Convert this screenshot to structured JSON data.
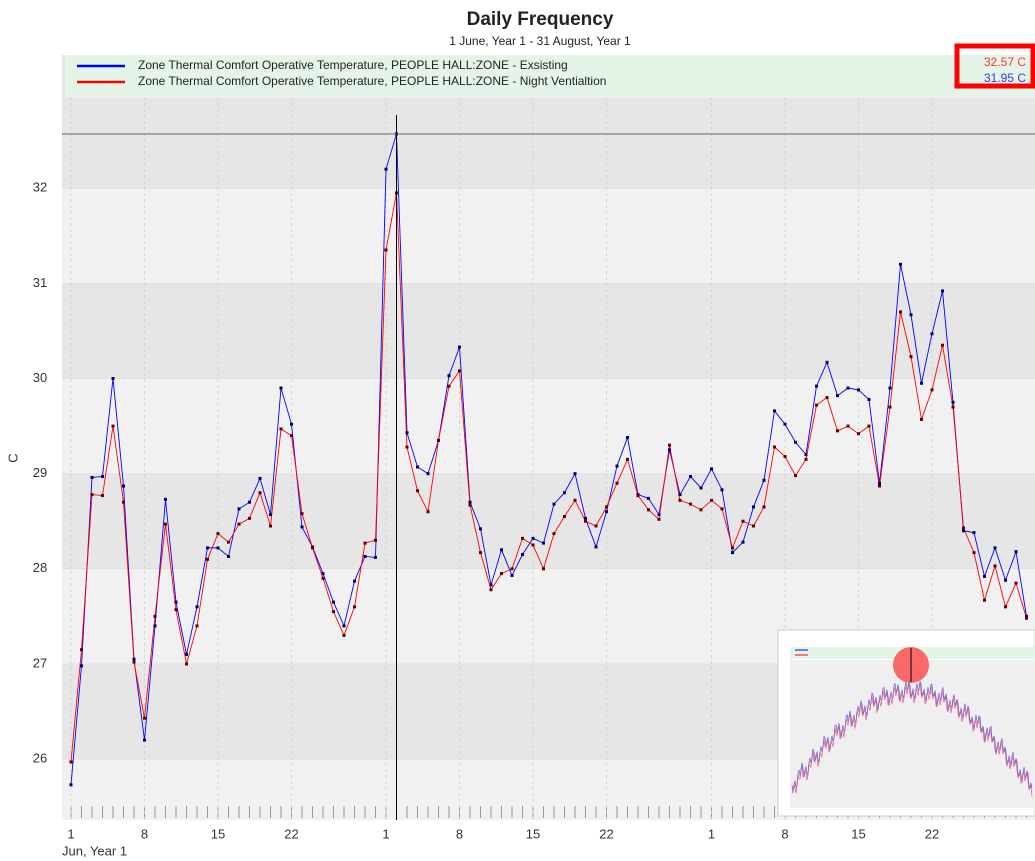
{
  "chart_data": {
    "type": "line",
    "title": "Daily Frequency",
    "subtitle": "1 June, Year 1 - 31 August, Year 1",
    "y_label": "C",
    "x_sub_label": "Jun, Year 1",
    "categories": [
      "1",
      null,
      null,
      null,
      null,
      null,
      null,
      "8",
      null,
      null,
      null,
      null,
      null,
      null,
      "15",
      null,
      null,
      null,
      null,
      null,
      null,
      "22",
      null,
      null,
      null,
      null,
      null,
      null,
      null,
      null,
      "1",
      null,
      null,
      null,
      null,
      null,
      null,
      "8",
      null,
      null,
      null,
      null,
      null,
      null,
      "15",
      null,
      null,
      null,
      null,
      null,
      null,
      "22",
      null,
      null,
      null,
      null,
      null,
      null,
      null,
      null,
      null,
      "1",
      null,
      null,
      null,
      null,
      null,
      null,
      "8",
      null,
      null,
      null,
      null,
      null,
      null,
      "15",
      null,
      null,
      null,
      null,
      null,
      null,
      "22",
      null,
      null,
      null,
      null,
      null,
      null,
      null,
      null,
      null
    ],
    "series": [
      {
        "name": "Zone Thermal Comfort Operative Temperature, PEOPLE HALL:ZONE - Exsisting",
        "color": "#0000ff",
        "values": [
          25.73,
          26.98,
          28.96,
          28.97,
          30.0,
          28.87,
          27.05,
          26.2,
          27.4,
          28.73,
          27.65,
          27.1,
          27.6,
          28.22,
          28.22,
          28.13,
          28.63,
          28.7,
          28.95,
          28.57,
          29.9,
          29.52,
          28.44,
          28.23,
          27.95,
          27.65,
          27.4,
          27.87,
          28.13,
          28.12,
          32.2,
          32.57,
          29.43,
          29.07,
          29.0,
          29.35,
          30.03,
          30.33,
          28.7,
          28.42,
          27.83,
          28.2,
          27.93,
          28.15,
          28.32,
          28.27,
          28.68,
          28.8,
          29.0,
          28.53,
          28.23,
          28.6,
          29.08,
          29.38,
          28.78,
          28.74,
          28.57,
          29.25,
          28.78,
          28.97,
          28.85,
          29.05,
          28.83,
          28.17,
          28.28,
          28.65,
          28.93,
          29.66,
          29.52,
          29.33,
          29.2,
          29.92,
          30.17,
          29.82,
          29.9,
          29.88,
          29.78,
          28.9,
          29.9,
          31.2,
          30.67,
          29.95,
          30.47,
          30.92,
          29.75,
          28.4,
          28.38,
          27.92,
          28.22,
          27.88,
          28.18,
          27.5
        ]
      },
      {
        "name": "Zone Thermal Comfort Operative Temperature, PEOPLE HALL:ZONE - Night Ventialtion",
        "color": "#ff0000",
        "values": [
          25.97,
          27.15,
          28.78,
          28.77,
          29.5,
          28.7,
          27.02,
          26.43,
          27.5,
          28.47,
          27.57,
          27.0,
          27.4,
          28.1,
          28.37,
          28.28,
          28.47,
          28.53,
          28.8,
          28.45,
          29.47,
          29.4,
          28.58,
          28.22,
          27.9,
          27.55,
          27.3,
          27.6,
          28.27,
          28.3,
          31.35,
          31.95,
          29.28,
          28.82,
          28.6,
          29.35,
          29.92,
          30.08,
          28.67,
          28.17,
          27.78,
          27.95,
          28.0,
          28.32,
          28.25,
          28.0,
          28.37,
          28.55,
          28.72,
          28.5,
          28.45,
          28.65,
          28.9,
          29.15,
          28.77,
          28.62,
          28.52,
          29.3,
          28.72,
          28.68,
          28.62,
          28.72,
          28.63,
          28.22,
          28.5,
          28.45,
          28.65,
          29.28,
          29.18,
          28.98,
          29.15,
          29.72,
          29.8,
          29.45,
          29.5,
          29.42,
          29.5,
          28.87,
          29.7,
          30.7,
          30.23,
          29.57,
          29.88,
          30.35,
          29.7,
          28.43,
          28.17,
          27.67,
          28.03,
          27.6,
          27.85,
          27.48
        ]
      }
    ],
    "readout": [
      {
        "text": "32.57 C",
        "color": "#ff3333"
      },
      {
        "text": "31.95 C",
        "color": "#3333ff"
      }
    ],
    "ylim": [
      25.36,
      33.4
    ],
    "yticks": [
      26,
      27,
      28,
      29,
      30,
      31,
      32
    ],
    "grid": true
  }
}
